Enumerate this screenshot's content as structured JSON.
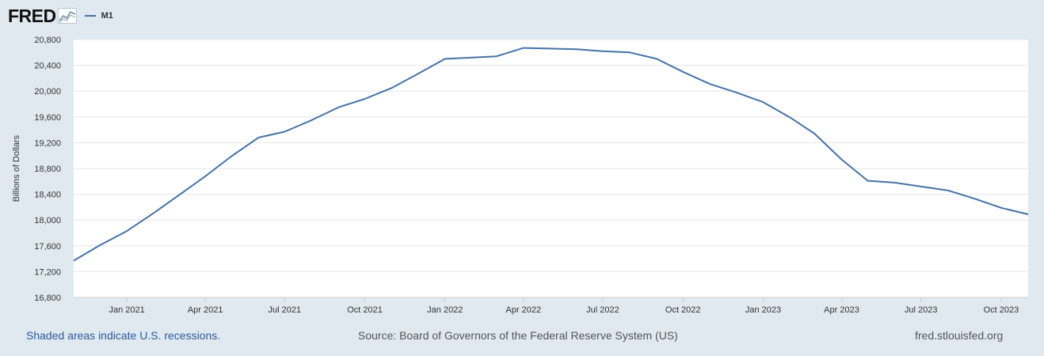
{
  "header": {
    "logo_text": "FRED",
    "logo_icon": "fred-chart-icon",
    "legend_label": "M1"
  },
  "footer": {
    "recession_note": "Shaded areas indicate U.S. recessions.",
    "source": "Source: Board of Governors of the Federal Reserve System (US)",
    "site": "fred.stlouisfed.org"
  },
  "colors": {
    "series": "#4572a7",
    "background": "#e1e9f0",
    "plot_background": "#ffffff",
    "grid": "#e6e6e6"
  },
  "chart_data": {
    "type": "line",
    "title": "",
    "xlabel": "",
    "ylabel": "Billions of Dollars",
    "ylim": [
      16800,
      20800
    ],
    "xlim": [
      "2020-11-01",
      "2023-11-01"
    ],
    "yticks": [
      "16,800",
      "17,200",
      "17,600",
      "18,000",
      "18,400",
      "18,800",
      "19,200",
      "19,600",
      "20,000",
      "20,400",
      "20,800"
    ],
    "xticks": [
      {
        "label": "Jan 2021",
        "date": "2021-01-01"
      },
      {
        "label": "Apr 2021",
        "date": "2021-04-01"
      },
      {
        "label": "Jul 2021",
        "date": "2021-07-01"
      },
      {
        "label": "Oct 2021",
        "date": "2021-10-01"
      },
      {
        "label": "Jan 2022",
        "date": "2022-01-01"
      },
      {
        "label": "Apr 2022",
        "date": "2022-04-01"
      },
      {
        "label": "Jul 2022",
        "date": "2022-07-01"
      },
      {
        "label": "Oct 2022",
        "date": "2022-10-01"
      },
      {
        "label": "Jan 2023",
        "date": "2023-01-01"
      },
      {
        "label": "Apr 2023",
        "date": "2023-04-01"
      },
      {
        "label": "Jul 2023",
        "date": "2023-07-01"
      },
      {
        "label": "Oct 2023",
        "date": "2023-10-01"
      }
    ],
    "grid": true,
    "legend_position": "top-left",
    "series": [
      {
        "name": "M1",
        "x": [
          "2020-11-01",
          "2020-12-01",
          "2021-01-01",
          "2021-02-01",
          "2021-03-01",
          "2021-04-01",
          "2021-05-01",
          "2021-06-01",
          "2021-07-01",
          "2021-08-01",
          "2021-09-01",
          "2021-10-01",
          "2021-11-01",
          "2021-12-01",
          "2022-01-01",
          "2022-02-01",
          "2022-03-01",
          "2022-04-01",
          "2022-05-01",
          "2022-06-01",
          "2022-07-01",
          "2022-08-01",
          "2022-09-01",
          "2022-10-01",
          "2022-11-01",
          "2022-12-01",
          "2023-01-01",
          "2023-02-01",
          "2023-03-01",
          "2023-04-01",
          "2023-05-01",
          "2023-06-01",
          "2023-07-01",
          "2023-08-01",
          "2023-09-01",
          "2023-10-01",
          "2023-11-01"
        ],
        "values": [
          17370,
          17610,
          17830,
          18110,
          18380,
          18680,
          18990,
          19280,
          19370,
          19550,
          19750,
          19880,
          20050,
          20270,
          20500,
          20520,
          20540,
          20670,
          20660,
          20650,
          20620,
          20600,
          20500,
          20300,
          20110,
          19980,
          19830,
          19590,
          19340,
          18940,
          18610,
          18580,
          18520,
          18460,
          18330,
          18190,
          18090
        ]
      }
    ]
  }
}
